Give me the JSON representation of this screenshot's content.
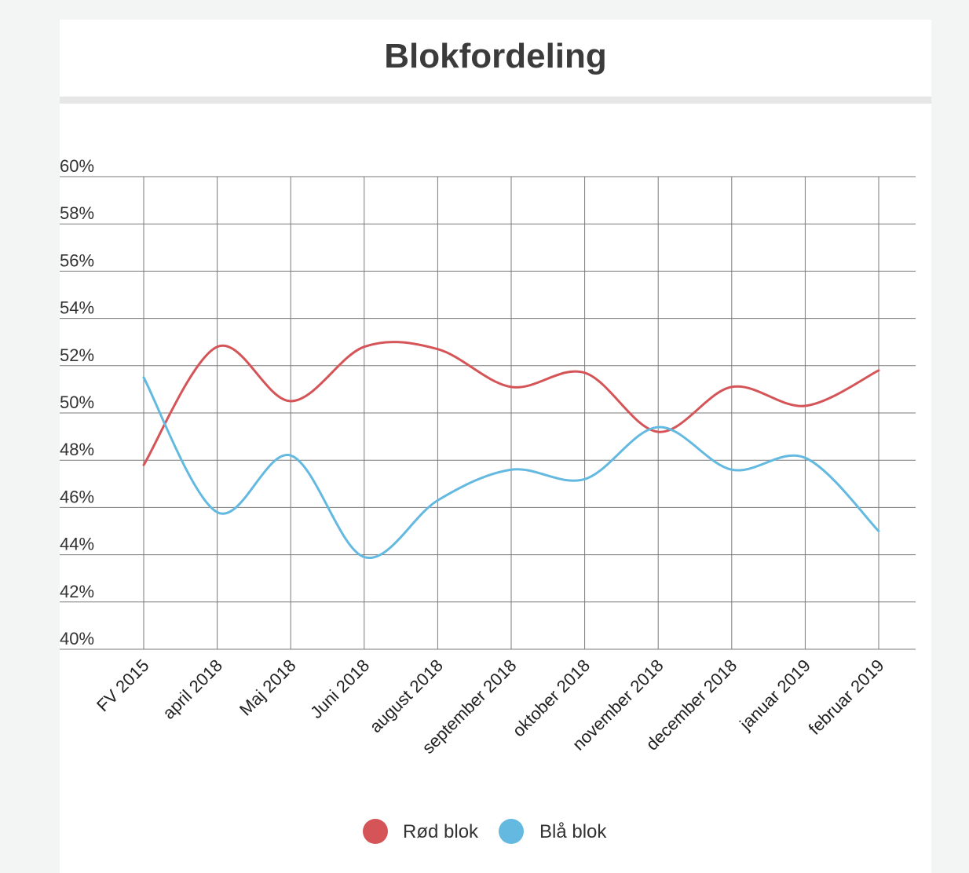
{
  "page": {
    "title": "Blokfordeling"
  },
  "chart_data": {
    "type": "line",
    "title": "Blokfordeling",
    "xlabel": "",
    "ylabel": "",
    "categories": [
      "FV 2015",
      "april 2018",
      "Maj 2018",
      "Juni 2018",
      "august 2018",
      "september 2018",
      "oktober 2018",
      "november 2018",
      "december 2018",
      "januar 2019",
      "februar 2019"
    ],
    "ylim": [
      40,
      60
    ],
    "yticks": [
      40,
      42,
      44,
      46,
      48,
      50,
      52,
      54,
      56,
      58,
      60
    ],
    "ytick_suffix": "%",
    "grid": true,
    "legend_position": "bottom-center",
    "series": [
      {
        "name": "Rød blok",
        "color": "#d55458",
        "values": [
          47.8,
          52.8,
          50.5,
          52.8,
          52.7,
          51.1,
          51.7,
          49.2,
          51.1,
          50.3,
          51.8
        ]
      },
      {
        "name": "Blå blok",
        "color": "#63b9e0",
        "values": [
          51.5,
          45.8,
          48.2,
          43.9,
          46.3,
          47.6,
          47.2,
          49.4,
          47.6,
          48.1,
          45.0
        ]
      }
    ]
  }
}
